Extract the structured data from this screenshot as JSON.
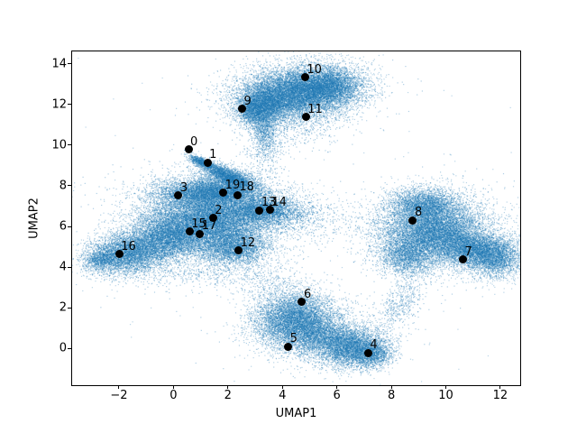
{
  "chart_data": {
    "type": "scatter",
    "title": "",
    "xlabel": "UMAP1",
    "ylabel": "UMAP2",
    "xlim": [
      -3.72,
      12.73
    ],
    "ylim": [
      -1.81,
      14.61
    ],
    "xticks": [
      -2,
      0,
      2,
      4,
      6,
      8,
      10,
      12
    ],
    "yticks": [
      0,
      2,
      4,
      6,
      8,
      10,
      12,
      14
    ],
    "grid": false,
    "legend": null,
    "point_color": "#1f77b4",
    "annotation_color": "#000000",
    "labeled_points": [
      {
        "label": "0",
        "x": 0.55,
        "y": 9.79
      },
      {
        "label": "1",
        "x": 1.25,
        "y": 9.14
      },
      {
        "label": "2",
        "x": 1.45,
        "y": 6.41
      },
      {
        "label": "3",
        "x": 0.18,
        "y": 7.53
      },
      {
        "label": "4",
        "x": 7.15,
        "y": -0.22
      },
      {
        "label": "5",
        "x": 4.21,
        "y": 0.08
      },
      {
        "label": "6",
        "x": 4.72,
        "y": 2.28
      },
      {
        "label": "7",
        "x": 10.63,
        "y": 4.37
      },
      {
        "label": "8",
        "x": 8.79,
        "y": 6.31
      },
      {
        "label": "9",
        "x": 2.52,
        "y": 11.79
      },
      {
        "label": "10",
        "x": 4.83,
        "y": 13.33
      },
      {
        "label": "11",
        "x": 4.86,
        "y": 11.38
      },
      {
        "label": "12",
        "x": 2.39,
        "y": 4.81
      },
      {
        "label": "13",
        "x": 3.16,
        "y": 6.79
      },
      {
        "label": "14",
        "x": 3.54,
        "y": 6.81
      },
      {
        "label": "15",
        "x": 0.59,
        "y": 5.75
      },
      {
        "label": "16",
        "x": -1.99,
        "y": 4.64
      },
      {
        "label": "17",
        "x": 0.97,
        "y": 5.64
      },
      {
        "label": "18",
        "x": 2.35,
        "y": 7.54
      },
      {
        "label": "19",
        "x": 1.83,
        "y": 7.66
      }
    ],
    "density_clusters": [
      {
        "name": "top-main",
        "cx": 4.55,
        "cy": 12.55,
        "sx": 1.05,
        "sy": 0.62,
        "rot": 8,
        "n": 11000,
        "a": 0.3
      },
      {
        "name": "top-right-lobe",
        "cx": 5.75,
        "cy": 12.9,
        "sx": 0.6,
        "sy": 0.45,
        "rot": 0,
        "n": 3000,
        "a": 0.3
      },
      {
        "name": "top-left-lobe",
        "cx": 3.35,
        "cy": 12.0,
        "sx": 0.45,
        "sy": 0.45,
        "rot": 0,
        "n": 2500,
        "a": 0.3
      },
      {
        "name": "top-left-tip",
        "cx": 2.95,
        "cy": 11.6,
        "sx": 0.3,
        "sy": 0.35,
        "rot": 0,
        "n": 1200,
        "a": 0.3
      },
      {
        "name": "top-tail",
        "cx": 3.35,
        "cy": 10.7,
        "sx": 0.22,
        "sy": 0.5,
        "rot": 0,
        "n": 700,
        "a": 0.3
      },
      {
        "name": "top-neck-sparse",
        "cx": 3.4,
        "cy": 9.8,
        "sx": 0.35,
        "sy": 0.7,
        "rot": 0,
        "n": 350,
        "a": 0.35
      },
      {
        "name": "top-halo",
        "cx": 4.6,
        "cy": 12.5,
        "sx": 1.5,
        "sy": 0.95,
        "rot": 8,
        "n": 1200,
        "a": 0.35
      },
      {
        "name": "under-top-sparse",
        "cx": 4.4,
        "cy": 10.9,
        "sx": 0.9,
        "sy": 0.5,
        "rot": 0,
        "n": 350,
        "a": 0.35
      },
      {
        "name": "arm-tip",
        "cx": 1.05,
        "cy": 9.15,
        "sx": 0.28,
        "sy": 0.1,
        "rot": -33,
        "n": 800,
        "a": 0.3
      },
      {
        "name": "arm",
        "cx": 1.9,
        "cy": 8.55,
        "sx": 0.5,
        "sy": 0.17,
        "rot": -33,
        "n": 1800,
        "a": 0.3
      },
      {
        "name": "arm-base",
        "cx": 2.4,
        "cy": 8.2,
        "sx": 0.4,
        "sy": 0.3,
        "rot": -25,
        "n": 900,
        "a": 0.3
      },
      {
        "name": "arm-sparse",
        "cx": 1.6,
        "cy": 8.5,
        "sx": 0.6,
        "sy": 0.3,
        "rot": -20,
        "n": 400,
        "a": 0.35
      },
      {
        "name": "mid-upper-band",
        "cx": 1.4,
        "cy": 7.7,
        "sx": 1.0,
        "sy": 0.34,
        "rot": 0,
        "n": 5500,
        "a": 0.3
      },
      {
        "name": "mid-main",
        "cx": 1.3,
        "cy": 6.35,
        "sx": 1.1,
        "sy": 0.8,
        "rot": 0,
        "n": 13000,
        "a": 0.3
      },
      {
        "name": "mid-right-arm",
        "cx": 3.25,
        "cy": 6.8,
        "sx": 0.55,
        "sy": 0.35,
        "rot": 0,
        "n": 2800,
        "a": 0.3
      },
      {
        "name": "mid-right-sparse",
        "cx": 4.35,
        "cy": 6.6,
        "sx": 0.55,
        "sy": 0.45,
        "rot": 0,
        "n": 600,
        "a": 0.35
      },
      {
        "name": "mid-lower-lobe",
        "cx": 2.25,
        "cy": 4.95,
        "sx": 0.6,
        "sy": 0.45,
        "rot": 0,
        "n": 3000,
        "a": 0.3
      },
      {
        "name": "mid-left-link",
        "cx": -0.25,
        "cy": 5.4,
        "sx": 0.75,
        "sy": 0.55,
        "rot": 0,
        "n": 4500,
        "a": 0.3
      },
      {
        "name": "left-main",
        "cx": -1.7,
        "cy": 4.65,
        "sx": 0.75,
        "sy": 0.5,
        "rot": 10,
        "n": 5000,
        "a": 0.3
      },
      {
        "name": "left-tip",
        "cx": -2.65,
        "cy": 4.35,
        "sx": 0.3,
        "sy": 0.22,
        "rot": 15,
        "n": 700,
        "a": 0.3
      },
      {
        "name": "mid-halo",
        "cx": 1.2,
        "cy": 6.2,
        "sx": 1.9,
        "sy": 1.3,
        "rot": 0,
        "n": 1500,
        "a": 0.35
      },
      {
        "name": "mid-to-right",
        "cx": 5.4,
        "cy": 6.4,
        "sx": 1.0,
        "sy": 0.6,
        "rot": 0,
        "n": 300,
        "a": 0.35
      },
      {
        "name": "bottom-left-lobe",
        "cx": 4.45,
        "cy": 1.35,
        "sx": 0.72,
        "sy": 0.72,
        "rot": 0,
        "n": 7000,
        "a": 0.3
      },
      {
        "name": "bottom-right-lobe",
        "cx": 6.6,
        "cy": 0.0,
        "sx": 0.65,
        "sy": 0.48,
        "rot": 0,
        "n": 4500,
        "a": 0.3
      },
      {
        "name": "bottom-mid",
        "cx": 5.5,
        "cy": 0.6,
        "sx": 0.6,
        "sy": 0.5,
        "rot": 0,
        "n": 2200,
        "a": 0.3
      },
      {
        "name": "bottom-right-edge",
        "cx": 7.3,
        "cy": -0.3,
        "sx": 0.35,
        "sy": 0.3,
        "rot": 0,
        "n": 1000,
        "a": 0.3
      },
      {
        "name": "bottom-halo",
        "cx": 5.2,
        "cy": 0.9,
        "sx": 1.4,
        "sy": 0.9,
        "rot": 0,
        "n": 900,
        "a": 0.35
      },
      {
        "name": "bridge-br",
        "cx": 8.3,
        "cy": 2.1,
        "sx": 0.35,
        "sy": 0.8,
        "rot": -30,
        "n": 450,
        "a": 0.35
      },
      {
        "name": "right-main",
        "cx": 9.5,
        "cy": 5.8,
        "sx": 0.95,
        "sy": 0.8,
        "rot": 0,
        "n": 9500,
        "a": 0.3
      },
      {
        "name": "right-top",
        "cx": 9.2,
        "cy": 7.1,
        "sx": 0.6,
        "sy": 0.4,
        "rot": 0,
        "n": 2500,
        "a": 0.3
      },
      {
        "name": "right-lobe",
        "cx": 11.1,
        "cy": 4.8,
        "sx": 0.8,
        "sy": 0.45,
        "rot": -20,
        "n": 5000,
        "a": 0.3
      },
      {
        "name": "right-edge",
        "cx": 11.9,
        "cy": 4.5,
        "sx": 0.45,
        "sy": 0.55,
        "rot": 0,
        "n": 1500,
        "a": 0.3
      },
      {
        "name": "right-bottom-left",
        "cx": 8.55,
        "cy": 4.5,
        "sx": 0.5,
        "sy": 0.5,
        "rot": 0,
        "n": 2000,
        "a": 0.3
      },
      {
        "name": "right-halo",
        "cx": 9.9,
        "cy": 5.6,
        "sx": 1.5,
        "sy": 1.1,
        "rot": 0,
        "n": 1200,
        "a": 0.35
      },
      {
        "name": "background-sparse",
        "cx": 4.5,
        "cy": 6.5,
        "sx": 4.5,
        "sy": 4.5,
        "rot": 0,
        "n": 250,
        "a": 0.3
      },
      {
        "name": "mid-bottom-fringe",
        "cx": 1.0,
        "cy": 3.6,
        "sx": 1.5,
        "sy": 0.35,
        "rot": 0,
        "n": 400,
        "a": 0.35
      },
      {
        "name": "gap-sparse",
        "cx": 3.4,
        "cy": 3.2,
        "sx": 0.5,
        "sy": 0.5,
        "rot": 0,
        "n": 200,
        "a": 0.35
      }
    ]
  }
}
